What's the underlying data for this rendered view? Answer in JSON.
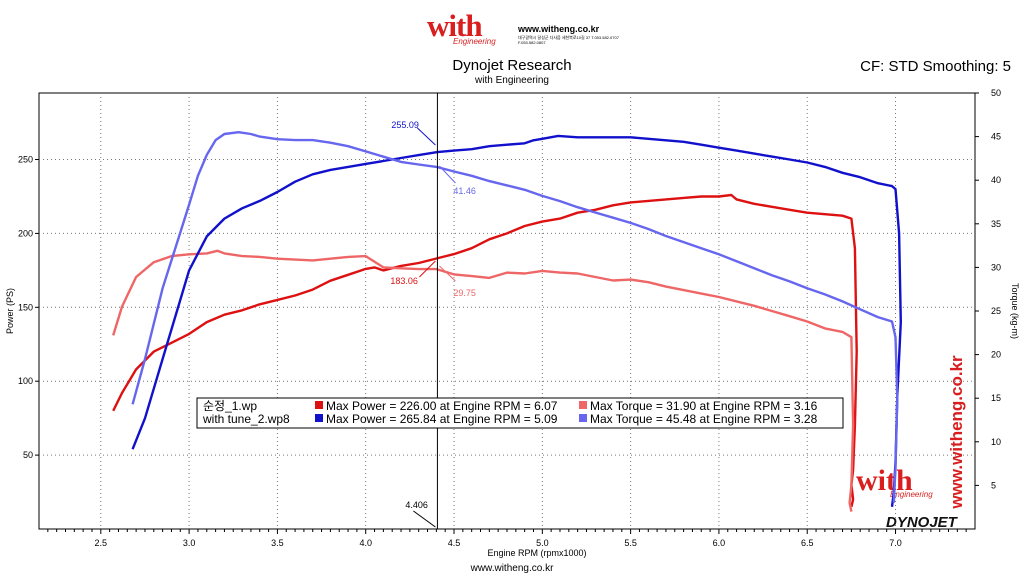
{
  "header": {
    "logo_word": "with",
    "logo_sub": "Engineering",
    "logo_url": "www.witheng.co.kr",
    "logo_address": "대구광역시 달성군 다사읍 세천북로10길 37 T.053.582.0707 F.053.582.0807",
    "title": "Dynojet Research",
    "subtitle": "with Engineering",
    "correction": "CF: STD Smoothing: 5",
    "footer": "www.witheng.co.kr"
  },
  "watermark": {
    "text": "www.witheng.co.kr",
    "word": "with",
    "sub": "Engineering",
    "brand": "DYNOJET"
  },
  "colors": {
    "run1_power": "#dd1111",
    "run1_torque": "#ee6666",
    "run2_power": "#1111cc",
    "run2_torque": "#6666ee",
    "brand_red": "#d81e1e"
  },
  "chart_data": {
    "type": "line",
    "xlabel": "Engine RPM (rpmx1000)",
    "ylabel_left": "Power (PS)",
    "ylabel_right": "Torque (kg-m)",
    "xlim": [
      2.15,
      7.45
    ],
    "ylim_left": [
      0,
      295
    ],
    "ylim_right": [
      0,
      50
    ],
    "x_ticks": [
      "2.5",
      "3.0",
      "3.5",
      "4.0",
      "4.5",
      "5.0",
      "5.5",
      "6.0",
      "6.5",
      "7.0"
    ],
    "y_ticks_left": [
      "50",
      "100",
      "150",
      "200",
      "250"
    ],
    "y_ticks_right": [
      "5",
      "10",
      "15",
      "20",
      "25",
      "30",
      "35",
      "40",
      "45",
      "50"
    ],
    "grid": true,
    "cursor": {
      "rpm": "4.406",
      "labels": [
        {
          "series": "with tune_2.wp8 power",
          "text": "255.09"
        },
        {
          "series": "with tune_2.wp8 torque",
          "text": "41.46"
        },
        {
          "series": "순정_1.wp power",
          "text": "183.06"
        },
        {
          "series": "순정_1.wp torque",
          "text": "29.75"
        }
      ]
    },
    "legend": {
      "placement": "center-left",
      "rows": [
        {
          "run": "순정_1.wp",
          "power": "Max Power = 226.00 at Engine RPM = 6.07",
          "torque": "Max Torque = 31.90 at Engine RPM = 3.16"
        },
        {
          "run": "with tune_2.wp8",
          "power": "Max Power = 265.84 at Engine RPM = 5.09",
          "torque": "Max Torque = 45.48 at Engine RPM = 3.28"
        }
      ]
    },
    "series": [
      {
        "name": "순정_1.wp",
        "metric": "power",
        "axis": "left",
        "x": [
          2.57,
          2.62,
          2.7,
          2.8,
          2.9,
          3.0,
          3.1,
          3.2,
          3.3,
          3.4,
          3.5,
          3.6,
          3.7,
          3.8,
          3.9,
          4.0,
          4.05,
          4.1,
          4.2,
          4.3,
          4.4,
          4.5,
          4.6,
          4.7,
          4.8,
          4.9,
          5.0,
          5.1,
          5.2,
          5.3,
          5.4,
          5.5,
          5.6,
          5.7,
          5.8,
          5.9,
          6.0,
          6.07,
          6.1,
          6.2,
          6.3,
          6.4,
          6.5,
          6.6,
          6.7,
          6.75,
          6.77,
          6.78,
          6.77,
          6.76,
          6.75,
          6.76,
          6.75
        ],
        "y": [
          80,
          92,
          108,
          120,
          126,
          132,
          140,
          145,
          148,
          152,
          155,
          158,
          162,
          168,
          172,
          176,
          177,
          175,
          178,
          180,
          183,
          186,
          190,
          196,
          200,
          205,
          208,
          210,
          214,
          216,
          219,
          221,
          222,
          223,
          224,
          225,
          225,
          226,
          223,
          220,
          218,
          216,
          214,
          213,
          212,
          210,
          190,
          120,
          70,
          40,
          30,
          20,
          15
        ]
      },
      {
        "name": "순정_1.wp",
        "metric": "torque",
        "axis": "right",
        "x": [
          2.57,
          2.62,
          2.7,
          2.8,
          2.9,
          3.0,
          3.1,
          3.16,
          3.2,
          3.3,
          3.4,
          3.5,
          3.6,
          3.7,
          3.8,
          3.9,
          4.0,
          4.1,
          4.2,
          4.3,
          4.4,
          4.5,
          4.6,
          4.7,
          4.8,
          4.9,
          5.0,
          5.1,
          5.2,
          5.3,
          5.4,
          5.5,
          5.6,
          5.7,
          5.8,
          5.9,
          6.0,
          6.1,
          6.2,
          6.3,
          6.4,
          6.5,
          6.6,
          6.7,
          6.75,
          6.76,
          6.75,
          6.74,
          6.75
        ],
        "y": [
          22.2,
          25.5,
          28.9,
          30.6,
          31.3,
          31.5,
          31.6,
          31.9,
          31.6,
          31.3,
          31.2,
          31.0,
          30.9,
          30.8,
          31.0,
          31.2,
          31.3,
          30.0,
          29.9,
          29.8,
          29.8,
          29.2,
          29.0,
          28.8,
          29.4,
          29.3,
          29.6,
          29.4,
          29.3,
          28.9,
          28.5,
          28.6,
          28.3,
          27.8,
          27.4,
          27.0,
          26.6,
          26.1,
          25.6,
          25.0,
          24.4,
          23.8,
          23.0,
          22.6,
          22.0,
          12,
          5,
          3,
          2
        ]
      },
      {
        "name": "with tune_2.wp8",
        "metric": "power",
        "axis": "left",
        "x": [
          2.68,
          2.75,
          2.85,
          2.95,
          3.0,
          3.1,
          3.2,
          3.3,
          3.4,
          3.5,
          3.6,
          3.7,
          3.8,
          3.9,
          4.0,
          4.1,
          4.2,
          4.3,
          4.406,
          4.5,
          4.6,
          4.7,
          4.8,
          4.9,
          4.95,
          5.0,
          5.09,
          5.2,
          5.3,
          5.4,
          5.5,
          5.6,
          5.7,
          5.8,
          5.9,
          6.0,
          6.1,
          6.2,
          6.3,
          6.4,
          6.5,
          6.6,
          6.7,
          6.8,
          6.9,
          6.98,
          7.0,
          7.02,
          7.03,
          7.01,
          7.0,
          6.99,
          6.98
        ],
        "y": [
          54,
          75,
          115,
          155,
          175,
          198,
          210,
          217,
          222,
          228,
          235,
          240,
          243,
          245,
          247,
          249,
          251,
          253,
          255,
          256,
          257,
          259,
          260,
          261,
          263,
          264,
          266,
          265,
          265,
          265,
          265,
          264,
          263,
          262,
          260,
          258,
          256,
          254,
          252,
          250,
          248,
          245,
          241,
          238,
          234,
          232,
          230,
          200,
          140,
          90,
          45,
          25,
          15
        ]
      },
      {
        "name": "with tune_2.wp8",
        "metric": "torque",
        "axis": "right",
        "x": [
          2.68,
          2.75,
          2.85,
          2.95,
          3.0,
          3.05,
          3.1,
          3.15,
          3.2,
          3.28,
          3.35,
          3.4,
          3.5,
          3.6,
          3.7,
          3.8,
          3.9,
          4.0,
          4.1,
          4.2,
          4.3,
          4.406,
          4.5,
          4.6,
          4.7,
          4.8,
          4.9,
          5.0,
          5.1,
          5.2,
          5.3,
          5.4,
          5.5,
          5.6,
          5.7,
          5.8,
          5.9,
          6.0,
          6.1,
          6.2,
          6.3,
          6.4,
          6.5,
          6.6,
          6.7,
          6.8,
          6.9,
          6.98,
          7.0,
          7.01,
          7.0,
          6.99
        ],
        "y": [
          14.3,
          19.5,
          27.6,
          34.0,
          37.2,
          40.5,
          42.9,
          44.6,
          45.3,
          45.5,
          45.3,
          45.0,
          44.7,
          44.6,
          44.6,
          44.3,
          43.9,
          43.3,
          42.7,
          42.1,
          41.8,
          41.5,
          41.0,
          40.5,
          39.9,
          39.4,
          38.9,
          38.2,
          37.6,
          36.9,
          36.3,
          35.7,
          35.1,
          34.4,
          33.6,
          32.9,
          32.2,
          31.5,
          30.7,
          29.9,
          29.1,
          28.4,
          27.6,
          26.9,
          26.1,
          25.2,
          24.3,
          23.8,
          22.0,
          15.0,
          7.0,
          3.0
        ]
      }
    ]
  }
}
